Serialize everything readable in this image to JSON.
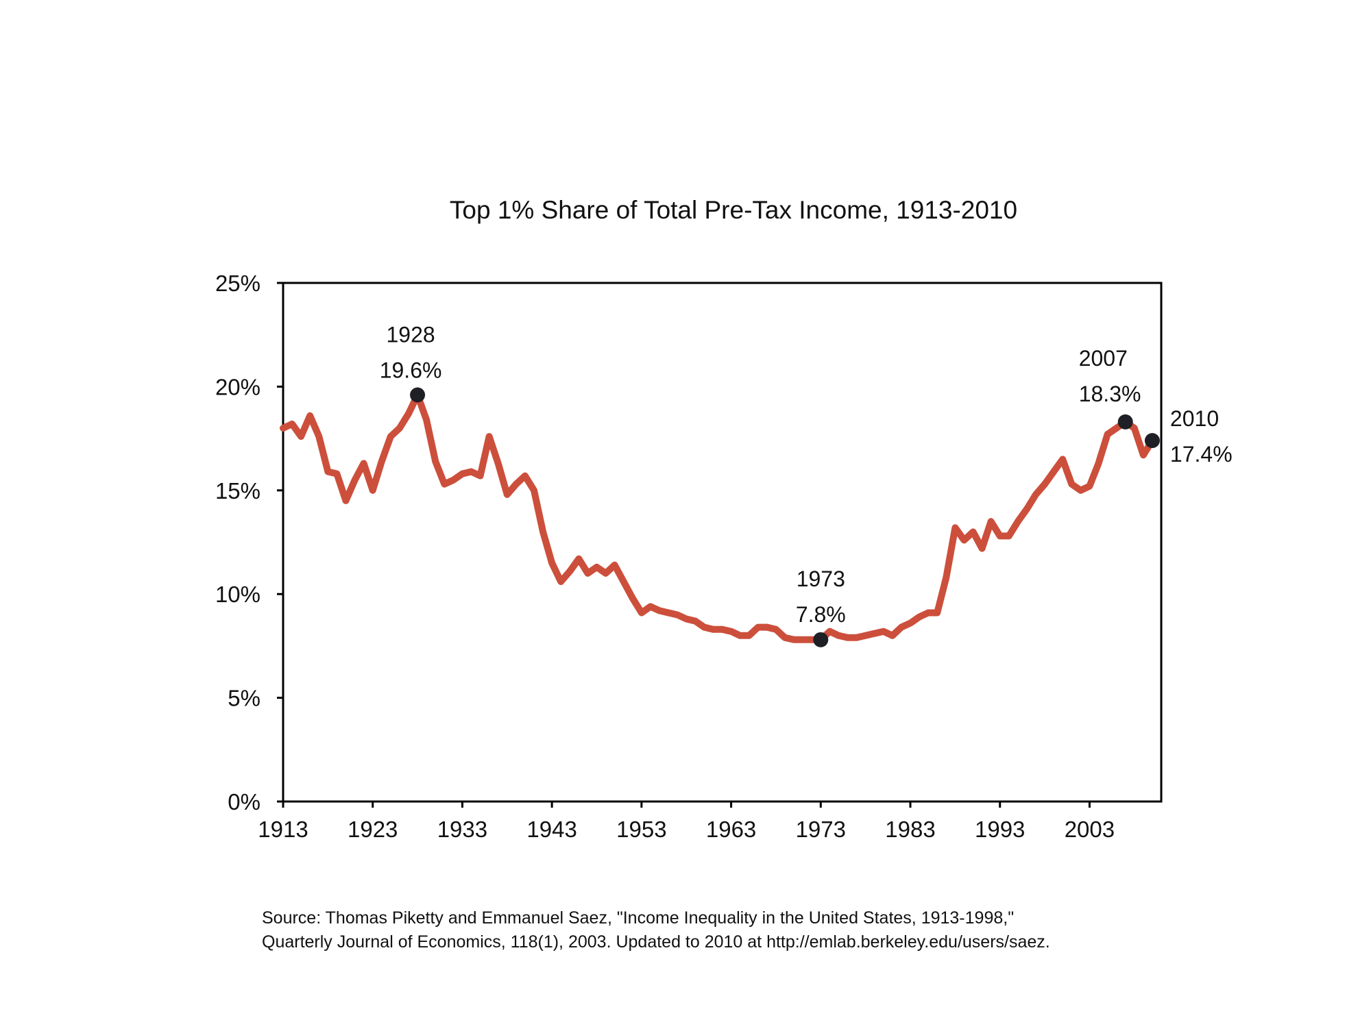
{
  "chart_data": {
    "type": "line",
    "title": "Top 1% Share of Total Pre-Tax Income, 1913-2010",
    "xlabel": "",
    "ylabel": "",
    "xlim": [
      1913,
      2011
    ],
    "ylim": [
      0,
      25
    ],
    "x_ticks": [
      1913,
      1923,
      1933,
      1943,
      1953,
      1963,
      1973,
      1983,
      1993,
      2003
    ],
    "x_tick_labels": [
      "1913",
      "1923",
      "1933",
      "1943",
      "1953",
      "1963",
      "1973",
      "1983",
      "1993",
      "2003"
    ],
    "y_ticks": [
      0,
      5,
      10,
      15,
      20,
      25
    ],
    "y_tick_labels": [
      "0%",
      "5%",
      "10%",
      "15%",
      "20%",
      "25%"
    ],
    "grid": false,
    "line_color": "#cc4f3c",
    "marker_color": "#1f1f26",
    "series": [
      {
        "x": [
          1913,
          1914,
          1915,
          1916,
          1917,
          1918,
          1919,
          1920,
          1921,
          1922,
          1923,
          1924,
          1925,
          1926,
          1927,
          1928,
          1929,
          1930,
          1931,
          1932,
          1933,
          1934,
          1935,
          1936,
          1937,
          1938,
          1939,
          1940,
          1941,
          1942,
          1943,
          1944,
          1945,
          1946,
          1947,
          1948,
          1949,
          1950,
          1951,
          1952,
          1953,
          1954,
          1955,
          1956,
          1957,
          1958,
          1959,
          1960,
          1961,
          1962,
          1963,
          1964,
          1965,
          1966,
          1967,
          1968,
          1969,
          1970,
          1971,
          1972,
          1973,
          1974,
          1975,
          1976,
          1977,
          1978,
          1979,
          1980,
          1981,
          1982,
          1983,
          1984,
          1985,
          1986,
          1987,
          1988,
          1989,
          1990,
          1991,
          1992,
          1993,
          1994,
          1995,
          1996,
          1997,
          1998,
          1999,
          2000,
          2001,
          2002,
          2003,
          2004,
          2005,
          2006,
          2007,
          2008,
          2009,
          2010
        ],
        "y": [
          18.0,
          18.2,
          17.6,
          18.6,
          17.6,
          15.9,
          15.8,
          14.5,
          15.5,
          16.3,
          15.0,
          16.4,
          17.6,
          18.0,
          18.7,
          19.6,
          18.4,
          16.4,
          15.3,
          15.5,
          15.8,
          15.9,
          15.7,
          17.6,
          16.3,
          14.8,
          15.3,
          15.7,
          15.0,
          13.0,
          11.5,
          10.6,
          11.1,
          11.7,
          11.0,
          11.3,
          11.0,
          11.4,
          10.6,
          9.8,
          9.1,
          9.4,
          9.2,
          9.1,
          9.0,
          8.8,
          8.7,
          8.4,
          8.3,
          8.3,
          8.2,
          8.0,
          8.0,
          8.4,
          8.4,
          8.3,
          7.9,
          7.8,
          7.8,
          7.8,
          7.8,
          8.2,
          8.0,
          7.9,
          7.9,
          8.0,
          8.1,
          8.2,
          8.0,
          8.4,
          8.6,
          8.9,
          9.1,
          9.1,
          10.8,
          13.2,
          12.6,
          13.0,
          12.2,
          13.5,
          12.8,
          12.8,
          13.5,
          14.1,
          14.8,
          15.3,
          15.9,
          16.5,
          15.3,
          15.0,
          15.2,
          16.3,
          17.7,
          18.0,
          18.3,
          18.0,
          16.7,
          17.4
        ]
      }
    ],
    "annotations": [
      {
        "year": "1928",
        "value": "19.6%",
        "x": 1928,
        "y": 19.6
      },
      {
        "year": "1973",
        "value": "7.8%",
        "x": 1973,
        "y": 7.8
      },
      {
        "year": "2007",
        "value": "18.3%",
        "x": 2007,
        "y": 18.3
      },
      {
        "year": "2010",
        "value": "17.4%",
        "x": 2010,
        "y": 17.4
      }
    ]
  },
  "source": {
    "line1": "Source: Thomas Piketty and Emmanuel Saez, \"Income Inequality in the United States, 1913-1998,\"",
    "line2": "Quarterly Journal of Economics, 118(1), 2003. Updated to 2010 at http://emlab.berkeley.edu/users/saez."
  }
}
